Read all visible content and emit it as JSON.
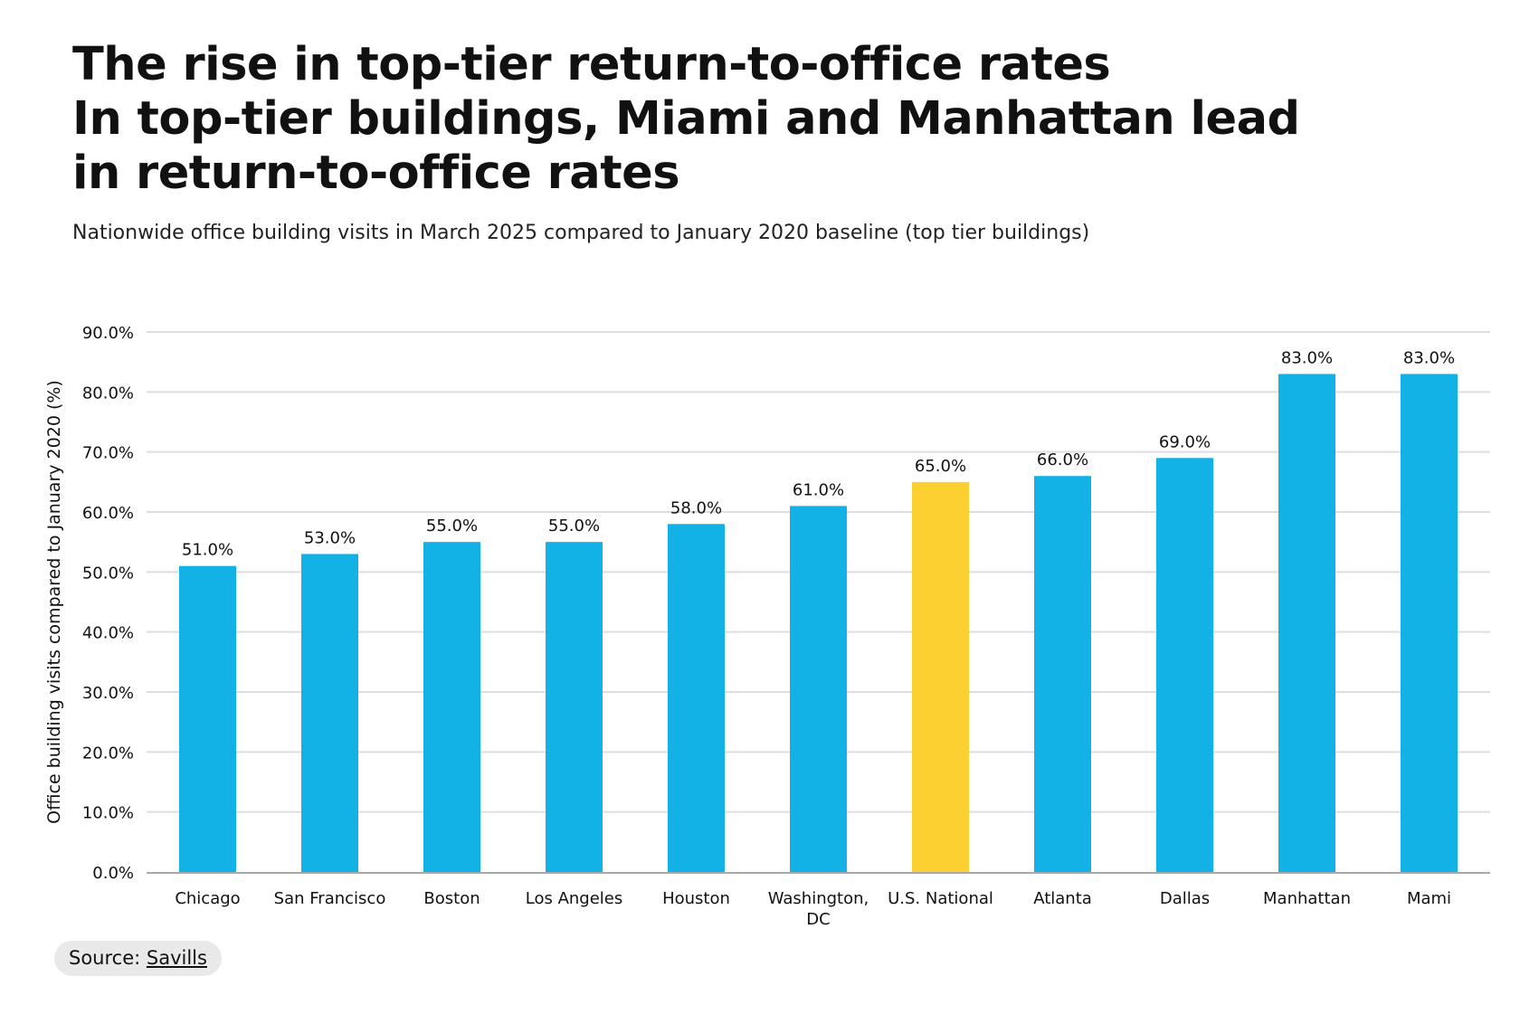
{
  "header": {
    "title_lines": [
      "The rise in top-tier return-to-office rates",
      "In top-tier buildings, Miami and Manhattan lead",
      "in return-to-office rates"
    ],
    "subtitle": "Nationwide office building visits in March 2025 compared to January 2020 baseline (top tier buildings)"
  },
  "chart_data": {
    "type": "bar",
    "title": "The rise in top-tier return-to-office rates",
    "subtitle": "Nationwide office building visits in March 2025 compared to January 2020 baseline (top tier buildings)",
    "xlabel": "",
    "ylabel": "Office building visits compared to January 2020 (%)",
    "ylim": [
      0,
      90
    ],
    "y_ticks": [
      0,
      10,
      20,
      30,
      40,
      50,
      60,
      70,
      80,
      90
    ],
    "y_tick_labels": [
      "0.0%",
      "10.0%",
      "20.0%",
      "30.0%",
      "40.0%",
      "50.0%",
      "60.0%",
      "70.0%",
      "80.0%",
      "90.0%"
    ],
    "grid": true,
    "legend": "none",
    "categories": [
      "Chicago",
      "San Francisco",
      "Boston",
      "Los Angeles",
      "Houston",
      "Washington, DC",
      "U.S. National",
      "Atlanta",
      "Dallas",
      "Manhattan",
      "Mami"
    ],
    "category_label_lines": [
      [
        "Chicago"
      ],
      [
        "San Francisco"
      ],
      [
        "Boston"
      ],
      [
        "Los Angeles"
      ],
      [
        "Houston"
      ],
      [
        "Washington,",
        "DC"
      ],
      [
        "U.S. National"
      ],
      [
        "Atlanta"
      ],
      [
        "Dallas"
      ],
      [
        "Manhattan"
      ],
      [
        "Mami"
      ]
    ],
    "values": [
      51,
      53,
      55,
      55,
      58,
      61,
      65,
      66,
      69,
      83,
      83
    ],
    "data_labels": [
      "51.0%",
      "53.0%",
      "55.0%",
      "55.0%",
      "58.0%",
      "61.0%",
      "65.0%",
      "66.0%",
      "69.0%",
      "83.0%",
      "83.0%"
    ],
    "colors": {
      "bar": "#12b1e6",
      "highlight": "#fdd031",
      "grid": "#dedede",
      "axis": "#a8a8a8"
    },
    "highlight_category": "U.S. National"
  },
  "source": {
    "prefix": "Source: ",
    "link_label": "Savills"
  }
}
